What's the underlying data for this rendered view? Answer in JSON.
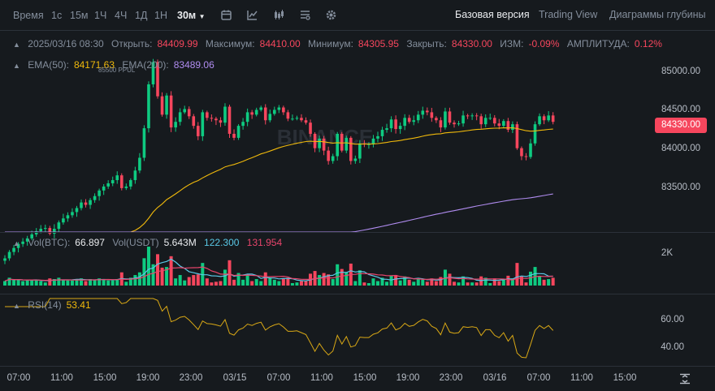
{
  "toolbar": {
    "time_label": "Время",
    "intervals": [
      "1с",
      "15м",
      "1Ч",
      "4Ч",
      "1Д",
      "1Н"
    ],
    "active_interval": "30м",
    "views": [
      "Базовая версия",
      "Trading View",
      "Диаграммы глубины"
    ],
    "icons": [
      "calendar-icon",
      "indicator-icon",
      "candles-icon",
      "layout-icon",
      "gear-icon"
    ]
  },
  "legend": {
    "date": "2025/03/16 08:30",
    "open_label": "Открыть:",
    "open": "84409.99",
    "high_label": "Максимум:",
    "high": "84410.00",
    "low_label": "Минимум:",
    "low": "84305.95",
    "close_label": "Закрыть:",
    "close": "84330.00",
    "change_label": "ИЗМ:",
    "change": "-0.09%",
    "amp_label": "АМПЛИТУДА:",
    "amp": "0.12%"
  },
  "ema": {
    "ema50_label": "EMA(50):",
    "ema50": "84171.63",
    "ema200_label": "EMA(200):",
    "ema200": "83489.06"
  },
  "volume": {
    "btc_label": "Vol(BTC):",
    "btc": "66.897",
    "usdt_label": "Vol(USDT)",
    "usdt": "5.643M",
    "ma1": "122.300",
    "ma2": "131.954",
    "axis": "2K"
  },
  "rsi": {
    "label": "RSI(14)",
    "value": "53.41",
    "axis": [
      "60.00",
      "40.00"
    ]
  },
  "peak_label": "85500 PPUL",
  "current_price": "84330.00",
  "watermark": "BINANCE",
  "colors": {
    "up": "#0ECB81",
    "down": "#F6465D",
    "ema50": "#F0B90B",
    "ema200": "#B08CF0",
    "vol_ma1": "#5AC8E6",
    "vol_ma2": "#E8456C",
    "rsi": "#D9A815",
    "bg": "#161A1E"
  },
  "chart_data": {
    "type": "candlestick",
    "price_axis": [
      85000,
      84500,
      84000,
      83500
    ],
    "price_axis_labels": [
      "85000.00",
      "84500.00",
      "84000.00",
      "83500.00"
    ],
    "ylim": [
      82950,
      85450
    ],
    "x_labels": [
      "07:00",
      "11:00",
      "15:00",
      "19:00",
      "23:00",
      "03/15",
      "07:00",
      "11:00",
      "15:00",
      "19:00",
      "23:00",
      "03/16",
      "07:00",
      "11:00",
      "15:00"
    ],
    "closes": [
      82620,
      82700,
      82750,
      82800,
      82830,
      82870,
      82920,
      82960,
      82990,
      83000,
      82930,
      82990,
      83070,
      83120,
      83160,
      83200,
      83250,
      83320,
      83290,
      83350,
      83400,
      83470,
      83520,
      83560,
      83600,
      83660,
      83500,
      83520,
      83600,
      83720,
      83880,
      84250,
      84800,
      85080,
      84650,
      84420,
      84660,
      84260,
      84330,
      84450,
      84490,
      84400,
      84280,
      84150,
      84450,
      84380,
      84370,
      84350,
      84320,
      84520,
      84180,
      84130,
      84280,
      84330,
      84450,
      84420,
      84480,
      84510,
      84350,
      84430,
      84480,
      84510,
      84450,
      84370,
      84370,
      84380,
      84350,
      84320,
      84180,
      84000,
      84120,
      83970,
      83840,
      83900,
      84180,
      83970,
      84130,
      83840,
      83870,
      84060,
      84050,
      84050,
      84120,
      84150,
      84230,
      84250,
      84360,
      84240,
      84280,
      84380,
      84330,
      84350,
      84420,
      84470,
      84450,
      84380,
      84350,
      84260,
      84460,
      84320,
      84300,
      84310,
      84410,
      84400,
      84410,
      84400,
      84300,
      84380,
      84380,
      84310,
      84280,
      84340,
      84230,
      84300,
      84000,
      83900,
      83890,
      84060,
      84300,
      84400,
      84350,
      84410,
      84330
    ],
    "volume_axis": "2K",
    "rsi_value": 53.41
  }
}
